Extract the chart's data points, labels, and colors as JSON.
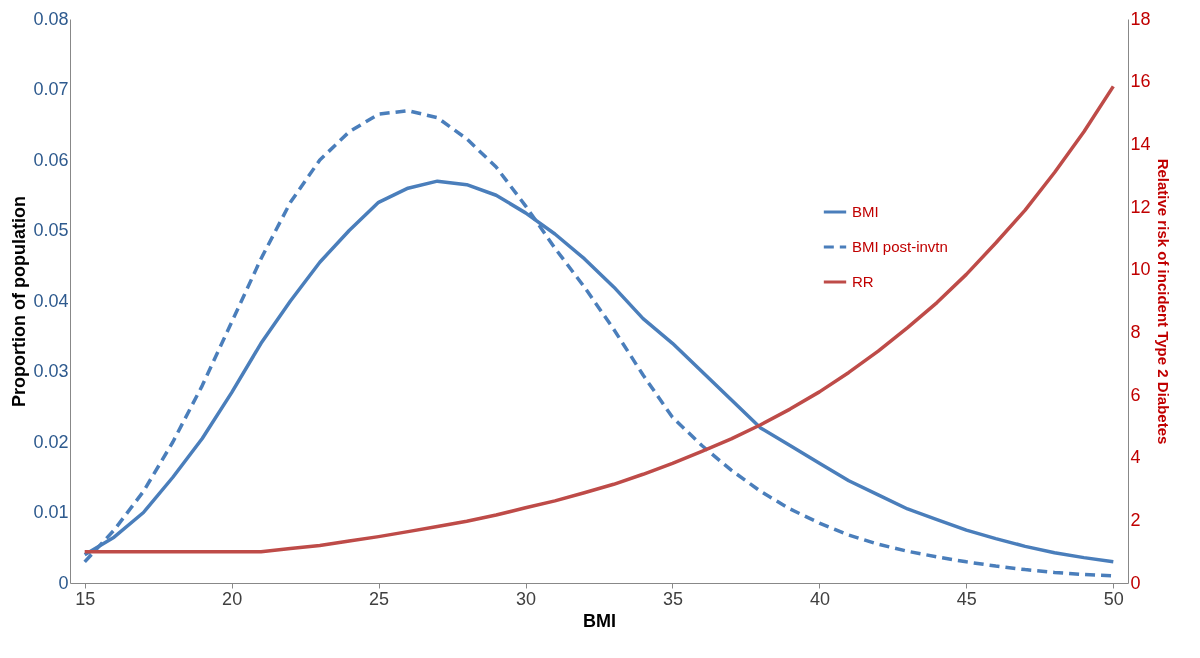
{
  "chart_data": {
    "type": "line",
    "xlabel": "BMI",
    "ylabel": "Proportion of population",
    "y2label": "Relative risk of incident Type 2 Diabetes",
    "x": [
      15,
      16,
      17,
      18,
      19,
      20,
      21,
      22,
      23,
      24,
      25,
      26,
      27,
      28,
      29,
      30,
      31,
      32,
      33,
      34,
      35,
      36,
      37,
      38,
      39,
      40,
      41,
      42,
      43,
      44,
      45,
      46,
      47,
      48,
      49,
      50
    ],
    "xlim": [
      14.5,
      50.5
    ],
    "xticks": [
      15,
      20,
      25,
      30,
      35,
      40,
      45,
      50
    ],
    "ylim": [
      0,
      0.08
    ],
    "yticks": [
      0,
      0.01,
      0.02,
      0.03,
      0.04,
      0.05,
      0.06,
      0.07,
      0.08
    ],
    "y2lim": [
      0,
      18
    ],
    "y2ticks": [
      0,
      2,
      4,
      6,
      8,
      10,
      12,
      14,
      16,
      18
    ],
    "grid": false,
    "legend": "top right",
    "marker": "none",
    "series": [
      {
        "name": "BMI",
        "color": "#4a7ebb",
        "line_style": "solid",
        "values": [
          0.004,
          0.0065,
          0.01,
          0.015,
          0.0205,
          0.027,
          0.034,
          0.04,
          0.0455,
          0.05,
          0.054,
          0.056,
          0.057,
          0.0565,
          0.055,
          0.0525,
          0.0495,
          0.046,
          0.042,
          0.0375,
          0.034,
          0.03,
          0.026,
          0.022,
          0.0195,
          0.017,
          0.0145,
          0.0125,
          0.0105,
          0.009,
          0.0075,
          0.0063,
          0.0052,
          0.0043,
          0.0036,
          0.003
        ]
      },
      {
        "name": "BMI post-invtn",
        "color": "#4a7ebb",
        "line_style": "dashed",
        "values": [
          0.003,
          0.0075,
          0.013,
          0.02,
          0.028,
          0.037,
          0.046,
          0.054,
          0.06,
          0.064,
          0.0665,
          0.067,
          0.066,
          0.063,
          0.059,
          0.0535,
          0.0475,
          0.042,
          0.036,
          0.0295,
          0.0235,
          0.0195,
          0.016,
          0.013,
          0.0105,
          0.0085,
          0.0068,
          0.0055,
          0.0045,
          0.0037,
          0.003,
          0.0024,
          0.0019,
          0.0015,
          0.0012,
          0.001
        ]
      },
      {
        "name": "RR",
        "color": "#be4b48",
        "line_style": "solid",
        "axis": "y2",
        "values": [
          1,
          1,
          1,
          1,
          1,
          1,
          1,
          1.1,
          1.2,
          1.34,
          1.48,
          1.64,
          1.8,
          1.97,
          2.17,
          2.4,
          2.62,
          2.88,
          3.15,
          3.47,
          3.82,
          4.2,
          4.6,
          5.05,
          5.55,
          6.1,
          6.72,
          7.4,
          8.15,
          8.95,
          9.85,
          10.85,
          11.9,
          13.1,
          14.4,
          15.85
        ]
      }
    ]
  }
}
